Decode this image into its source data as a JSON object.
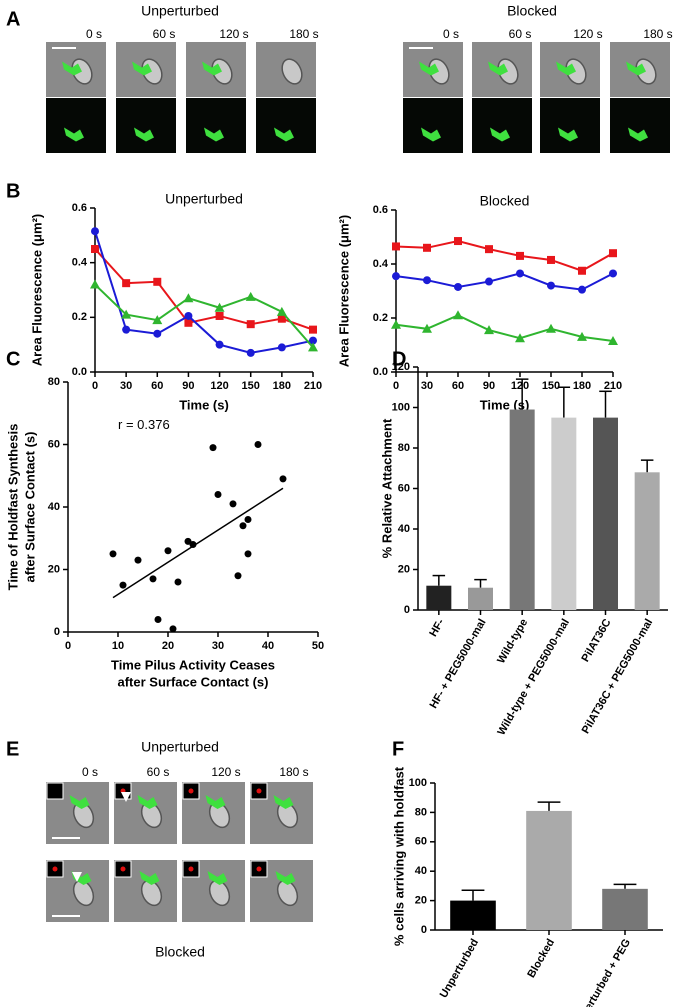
{
  "figure": {
    "panel_letters": [
      "A",
      "B",
      "C",
      "D",
      "E",
      "F"
    ],
    "A": {
      "left_title": "Unperturbed",
      "right_title": "Blocked",
      "times": [
        "0 s",
        "60 s",
        "120 s",
        "180 s"
      ]
    },
    "E": {
      "top_title": "Unperturbed",
      "bottom_title": "Blocked",
      "times": [
        "0 s",
        "60 s",
        "120 s",
        "180 s"
      ]
    }
  },
  "chart_data": [
    {
      "type": "line",
      "title": "Unperturbed",
      "xlabel": [
        "Time  (s)"
      ],
      "ylabel": "Area Fluorescence (μm²)",
      "x": [
        0,
        30,
        60,
        90,
        120,
        150,
        180,
        210
      ],
      "series": [
        {
          "color": "#e8161b",
          "marker": "square",
          "values": [
            0.45,
            0.325,
            0.33,
            0.18,
            0.205,
            0.175,
            0.195,
            0.155
          ]
        },
        {
          "color": "#1b1bd6",
          "marker": "circle",
          "values": [
            0.515,
            0.155,
            0.14,
            0.205,
            0.1,
            0.07,
            0.09,
            0.115
          ]
        },
        {
          "color": "#2fb52f",
          "marker": "triangle",
          "values": [
            0.32,
            0.21,
            0.19,
            0.27,
            0.235,
            0.275,
            0.22,
            0.09
          ]
        }
      ],
      "xlim": [
        0,
        210
      ],
      "xticks": [
        0,
        30,
        60,
        90,
        120,
        150,
        180,
        210
      ],
      "ylim": [
        0,
        0.6
      ],
      "yticks": [
        {
          "value": 0,
          "label": "0.0"
        },
        0.2,
        0.4,
        0.6
      ]
    },
    {
      "type": "line",
      "title": "Blocked",
      "xlabel": [
        "Time  (s)"
      ],
      "ylabel": "Area Fluorescence (μm²)",
      "x": [
        0,
        30,
        60,
        90,
        120,
        150,
        180,
        210
      ],
      "series": [
        {
          "color": "#e8161b",
          "marker": "square",
          "values": [
            0.465,
            0.46,
            0.485,
            0.455,
            0.43,
            0.415,
            0.375,
            0.44
          ]
        },
        {
          "color": "#1b1bd6",
          "marker": "circle",
          "values": [
            0.355,
            0.34,
            0.315,
            0.335,
            0.365,
            0.32,
            0.305,
            0.365
          ]
        },
        {
          "color": "#2fb52f",
          "marker": "triangle",
          "values": [
            0.175,
            0.16,
            0.21,
            0.155,
            0.125,
            0.16,
            0.13,
            0.115
          ]
        }
      ],
      "xlim": [
        0,
        210
      ],
      "xticks": [
        0,
        30,
        60,
        90,
        120,
        150,
        180,
        210
      ],
      "ylim": [
        0,
        0.6
      ],
      "yticks": [
        {
          "value": 0,
          "label": "0.0"
        },
        0.2,
        0.4,
        0.6
      ]
    },
    {
      "type": "scatter",
      "annotation": "r = 0.376",
      "xlabel": [
        "Time Pilus Activity Ceases",
        "after Surface Contact (s)"
      ],
      "ylabel": [
        "Time of Holdfast Synthesis",
        "after Surface Contact (s)"
      ],
      "color": "#000000",
      "x": [
        9,
        11,
        14,
        17,
        18,
        20,
        21,
        22,
        24,
        25,
        29,
        30,
        33,
        34,
        35,
        36,
        36,
        38,
        43
      ],
      "values": [
        25,
        15,
        23,
        17,
        4,
        26,
        1,
        16,
        29,
        28,
        59,
        44,
        41,
        18,
        34,
        36,
        25,
        60,
        49
      ],
      "trendline": {
        "x": [
          9,
          43
        ],
        "y": [
          11,
          46
        ]
      },
      "xlim": [
        0,
        50
      ],
      "xticks": [
        0,
        10,
        20,
        30,
        40,
        50
      ],
      "ylim": [
        0,
        80
      ],
      "yticks": [
        0,
        20,
        40,
        60,
        80
      ]
    },
    {
      "type": "bar",
      "ylabel": "% Relative Attachment",
      "categories": [
        "HF-",
        "HF- + PEG5000-mal",
        "Wild-type",
        "Wild-type + PEG5000-mal",
        "PilAT36C",
        "PilAT36C + PEG5000-mal"
      ],
      "values": [
        12,
        11,
        99,
        95,
        95,
        68
      ],
      "errors": [
        5,
        4,
        15,
        15,
        13,
        6
      ],
      "colors": [
        "#222222",
        "#999999",
        "#777777",
        "#cccccc",
        "#555555",
        "#aaaaaa"
      ],
      "ylim": [
        0,
        120
      ],
      "yticks": [
        0,
        20,
        40,
        60,
        80,
        100,
        120
      ]
    },
    {
      "type": "bar",
      "ylabel": "% cells arriving with holdfast",
      "categories": [
        "Unperturbed",
        "Blocked",
        "Unperturbed + PEG"
      ],
      "values": [
        20,
        81,
        28
      ],
      "errors": [
        7,
        6,
        3
      ],
      "colors": [
        "#000000",
        "#aaaaaa",
        "#777777"
      ],
      "ylim": [
        0,
        100
      ],
      "yticks": [
        0,
        20,
        40,
        60,
        80,
        100
      ]
    }
  ]
}
